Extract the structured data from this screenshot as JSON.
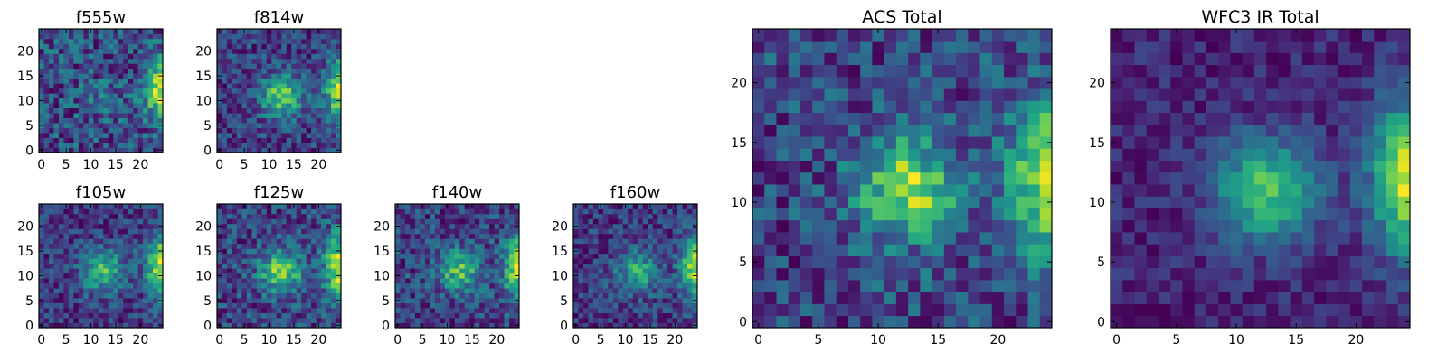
{
  "chart_data": [
    {
      "type": "heatmap",
      "title": "f555w",
      "cmap": "viridis",
      "grid_size": 25,
      "xticks": [
        0,
        5,
        10,
        15,
        20
      ],
      "yticks": [
        0,
        5,
        10,
        15,
        20
      ],
      "features": {
        "noise": 0.55,
        "edge_strength": 0.9,
        "center_strength": 0.15,
        "seed": 11
      }
    },
    {
      "type": "heatmap",
      "title": "f814w",
      "cmap": "viridis",
      "grid_size": 25,
      "xticks": [
        0,
        5,
        10,
        15,
        20
      ],
      "yticks": [
        0,
        5,
        10,
        15,
        20
      ],
      "features": {
        "noise": 0.4,
        "edge_strength": 0.9,
        "center_strength": 0.75,
        "seed": 23
      }
    },
    {
      "type": "heatmap",
      "title": "f105w",
      "cmap": "viridis",
      "grid_size": 25,
      "xticks": [
        0,
        5,
        10,
        15,
        20
      ],
      "yticks": [
        0,
        5,
        10,
        15,
        20
      ],
      "features": {
        "noise": 0.35,
        "edge_strength": 0.9,
        "center_strength": 0.6,
        "seed": 37
      }
    },
    {
      "type": "heatmap",
      "title": "f125w",
      "cmap": "viridis",
      "grid_size": 25,
      "xticks": [
        0,
        5,
        10,
        15,
        20
      ],
      "yticks": [
        0,
        5,
        10,
        15,
        20
      ],
      "features": {
        "noise": 0.38,
        "edge_strength": 0.85,
        "center_strength": 0.65,
        "seed": 41
      }
    },
    {
      "type": "heatmap",
      "title": "f140w",
      "cmap": "viridis",
      "grid_size": 25,
      "xticks": [
        0,
        5,
        10,
        15,
        20
      ],
      "yticks": [
        0,
        5,
        10,
        15,
        20
      ],
      "features": {
        "noise": 0.4,
        "edge_strength": 0.9,
        "center_strength": 0.6,
        "seed": 53
      }
    },
    {
      "type": "heatmap",
      "title": "f160w",
      "cmap": "viridis",
      "grid_size": 25,
      "xticks": [
        0,
        5,
        10,
        15,
        20
      ],
      "yticks": [
        0,
        5,
        10,
        15,
        20
      ],
      "features": {
        "noise": 0.38,
        "edge_strength": 0.95,
        "center_strength": 0.55,
        "seed": 67
      }
    },
    {
      "type": "heatmap",
      "title": "ACS Total",
      "cmap": "viridis",
      "grid_size": 25,
      "xticks": [
        0,
        5,
        10,
        15,
        20
      ],
      "yticks": [
        0,
        5,
        10,
        15,
        20
      ],
      "features": {
        "noise": 0.45,
        "edge_strength": 0.95,
        "center_strength": 0.8,
        "seed": 79
      }
    },
    {
      "type": "heatmap",
      "title": "WFC3 IR Total",
      "cmap": "viridis",
      "grid_size": 25,
      "xticks": [
        0,
        5,
        10,
        15,
        20
      ],
      "yticks": [
        0,
        5,
        10,
        15,
        20
      ],
      "features": {
        "noise": 0.22,
        "edge_strength": 1.0,
        "center_strength": 0.75,
        "seed": 97
      }
    }
  ]
}
